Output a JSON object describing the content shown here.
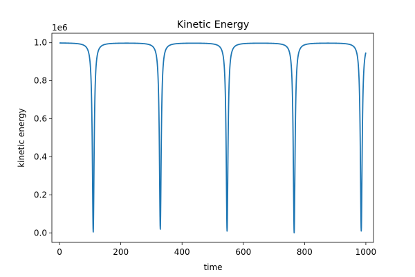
{
  "chart_data": {
    "type": "line",
    "title": "Kinetic Energy",
    "xlabel": "time",
    "ylabel": "kinetic energy",
    "y_offset_label": "1e6",
    "xlim": [
      -25,
      1025
    ],
    "ylim": [
      -0.05,
      1.05
    ],
    "x_ticks": [
      0,
      200,
      400,
      600,
      800,
      1000
    ],
    "y_ticks": [
      0.0,
      0.2,
      0.4,
      0.6,
      0.8,
      1.0
    ],
    "x_tick_labels": [
      "0",
      "200",
      "400",
      "600",
      "800",
      "1000"
    ],
    "y_tick_labels": [
      "0.0",
      "0.2",
      "0.4",
      "0.6",
      "0.8",
      "1.0"
    ],
    "grid": false,
    "series": [
      {
        "color": "#1f77b4",
        "x_range": [
          0,
          1000
        ],
        "baseline": 1.0,
        "dips": [
          {
            "x": 110,
            "min": 0.005
          },
          {
            "x": 329,
            "min": 0.02
          },
          {
            "x": 547,
            "min": 0.01
          },
          {
            "x": 766,
            "min": 0.0
          },
          {
            "x": 985,
            "min": 0.01
          }
        ]
      }
    ]
  }
}
